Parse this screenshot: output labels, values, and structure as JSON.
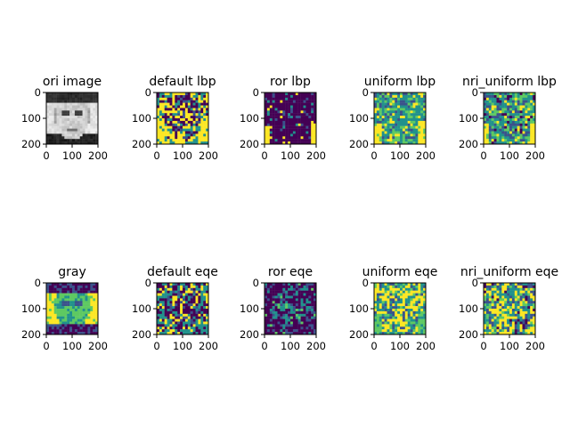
{
  "figure": {
    "layout": "2x5 grid of image subplots"
  },
  "chart_data": [
    {
      "type": "heatmap",
      "title": "ori image",
      "colormap": "gray",
      "content": "grayscale face portrait",
      "xlim": [
        0,
        200
      ],
      "ylim": [
        200,
        0
      ],
      "xticks": [
        "0",
        "100",
        "200"
      ],
      "yticks": [
        "0",
        "100",
        "200"
      ]
    },
    {
      "type": "heatmap",
      "title": "default lbp",
      "colormap": "viridis",
      "content": "LBP default texture map",
      "xlim": [
        0,
        200
      ],
      "ylim": [
        200,
        0
      ],
      "xticks": [
        "0",
        "100",
        "200"
      ],
      "yticks": [
        "0",
        "100",
        "200"
      ]
    },
    {
      "type": "heatmap",
      "title": "ror lbp",
      "colormap": "viridis",
      "content": "LBP rotation-invariant map (mostly dark)",
      "xlim": [
        0,
        200
      ],
      "ylim": [
        200,
        0
      ],
      "xticks": [
        "0",
        "100",
        "200"
      ],
      "yticks": [
        "0",
        "100",
        "200"
      ]
    },
    {
      "type": "heatmap",
      "title": "uniform lbp",
      "colormap": "viridis",
      "content": "LBP uniform texture map",
      "xlim": [
        0,
        200
      ],
      "ylim": [
        200,
        0
      ],
      "xticks": [
        "0",
        "100",
        "200"
      ],
      "yticks": [
        "0",
        "100",
        "200"
      ]
    },
    {
      "type": "heatmap",
      "title": "nri_uniform lbp",
      "colormap": "viridis",
      "content": "LBP non-rotation-invariant uniform map",
      "xlim": [
        0,
        200
      ],
      "ylim": [
        200,
        0
      ],
      "xticks": [
        "0",
        "100",
        "200"
      ],
      "yticks": [
        "0",
        "100",
        "200"
      ]
    },
    {
      "type": "heatmap",
      "title": "gray",
      "colormap": "viridis",
      "content": "grayscale face rendered in viridis",
      "xlim": [
        0,
        200
      ],
      "ylim": [
        200,
        0
      ],
      "xticks": [
        "0",
        "100",
        "200"
      ],
      "yticks": [
        "0",
        "100",
        "200"
      ]
    },
    {
      "type": "heatmap",
      "title": "default eqe",
      "colormap": "viridis",
      "content": "equalized default LBP map",
      "xlim": [
        0,
        200
      ],
      "ylim": [
        200,
        0
      ],
      "xticks": [
        "0",
        "100",
        "200"
      ],
      "yticks": [
        "0",
        "100",
        "200"
      ]
    },
    {
      "type": "heatmap",
      "title": "ror eqe",
      "colormap": "viridis",
      "content": "equalized ror LBP map (mostly dark)",
      "xlim": [
        0,
        200
      ],
      "ylim": [
        200,
        0
      ],
      "xticks": [
        "0",
        "100",
        "200"
      ],
      "yticks": [
        "0",
        "100",
        "200"
      ]
    },
    {
      "type": "heatmap",
      "title": "uniform eqe",
      "colormap": "viridis",
      "content": "equalized uniform LBP map",
      "xlim": [
        0,
        200
      ],
      "ylim": [
        200,
        0
      ],
      "xticks": [
        "0",
        "100",
        "200"
      ],
      "yticks": [
        "0",
        "100",
        "200"
      ]
    },
    {
      "type": "heatmap",
      "title": "nri_uniform eqe",
      "colormap": "viridis",
      "content": "equalized nri_uniform LBP map",
      "xlim": [
        0,
        200
      ],
      "ylim": [
        200,
        0
      ],
      "xticks": [
        "0",
        "100",
        "200"
      ],
      "yticks": [
        "0",
        "100",
        "200"
      ]
    }
  ],
  "colors": {
    "viridis_dark": "#440154",
    "viridis_blue": "#3b528b",
    "viridis_teal": "#21918c",
    "viridis_green": "#5ec962",
    "viridis_yellow": "#fde725",
    "axis_color": "#000000"
  }
}
